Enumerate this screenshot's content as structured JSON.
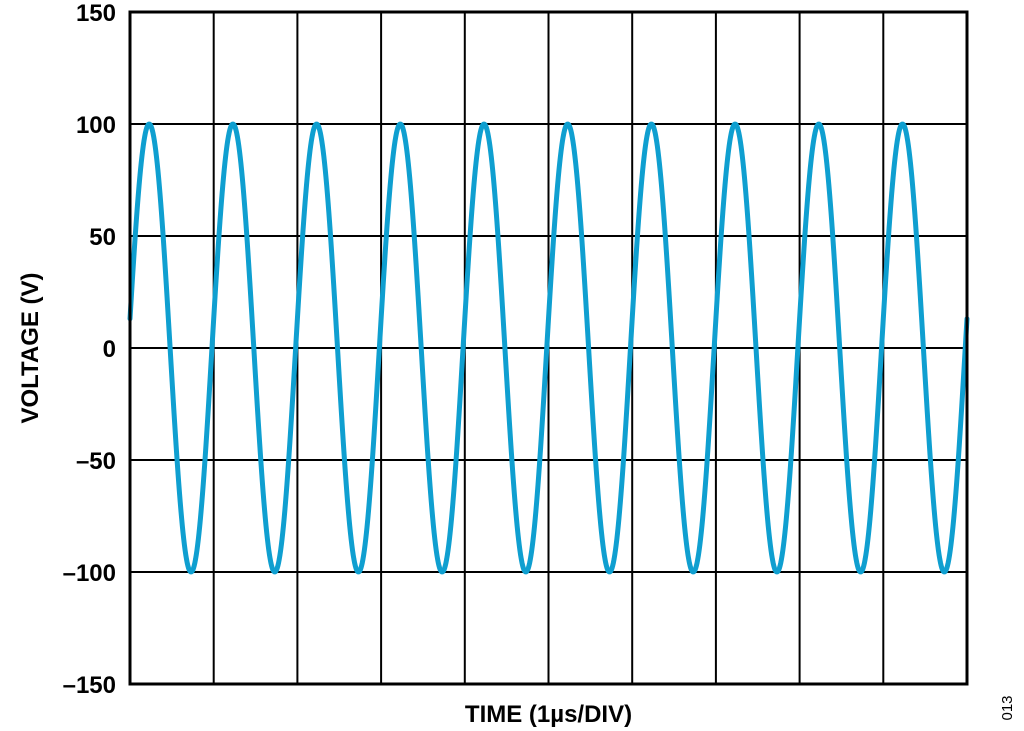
{
  "chart_data": {
    "type": "line",
    "xlabel": "TIME (1µs/DIV)",
    "ylabel": "VOLTAGE (V)",
    "x_unit": "µs",
    "xlim": [
      0,
      10
    ],
    "ylim": [
      -150,
      150
    ],
    "y_ticks": [
      150,
      100,
      50,
      0,
      -50,
      -100,
      -150
    ],
    "y_tick_labels": [
      "150",
      "100",
      "50",
      "0",
      "–50",
      "–100",
      "–150"
    ],
    "x_divisions": 10,
    "grid": true,
    "series": [
      {
        "color": "#0f9fd0",
        "waveform": "sine",
        "amplitude": 100,
        "period": 1.0,
        "phase_start_deg": 7.5,
        "x_start": 0,
        "x_end": 10
      }
    ]
  },
  "figure_id": "013"
}
